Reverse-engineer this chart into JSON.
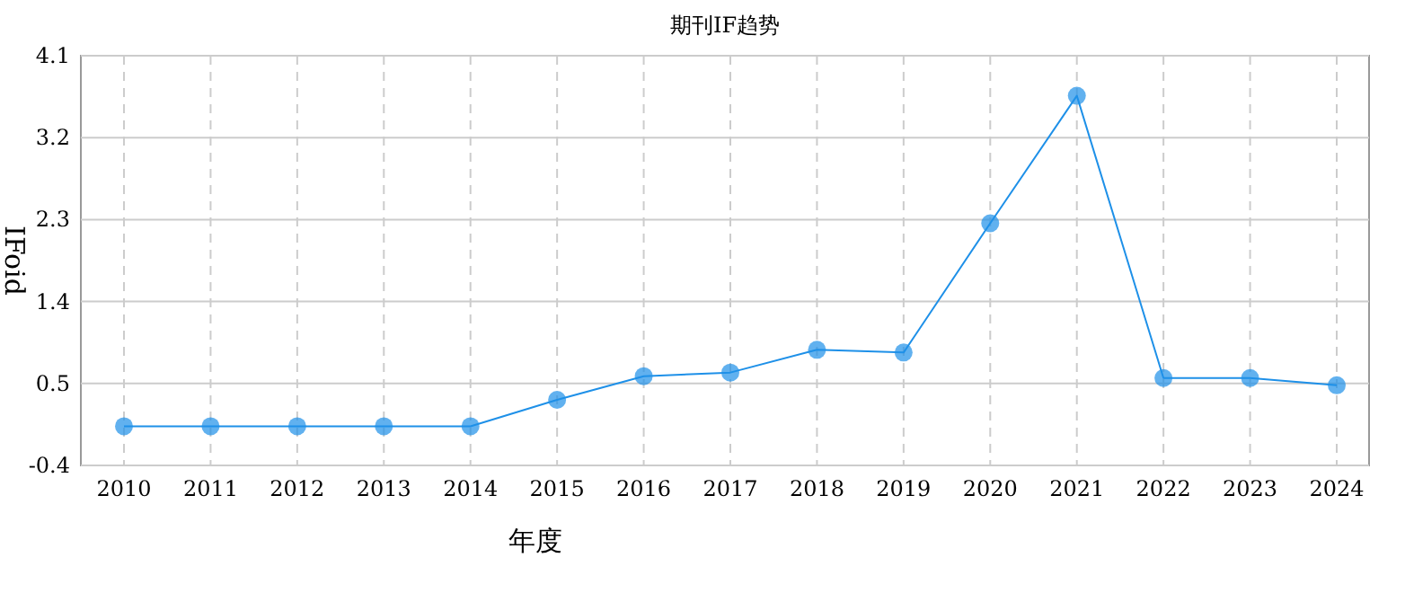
{
  "chart_data": {
    "type": "line",
    "title": "期刊IF趋势",
    "xlabel": "年度",
    "ylabel": "IFoid",
    "categories": [
      "2010",
      "2011",
      "2012",
      "2013",
      "2014",
      "2015",
      "2016",
      "2017",
      "2018",
      "2019",
      "2020",
      "2021",
      "2022",
      "2023",
      "2024"
    ],
    "series": [
      {
        "color": "#1e90e8",
        "values": [
          0.03,
          0.03,
          0.03,
          0.03,
          0.03,
          0.32,
          0.58,
          0.62,
          0.87,
          0.84,
          2.26,
          3.66,
          0.56,
          0.56,
          0.48
        ]
      }
    ],
    "ylim": [
      -0.4,
      4.1
    ],
    "yticks": [
      -0.4,
      0.5,
      1.4,
      2.3,
      3.2,
      4.1
    ],
    "grid": true,
    "marker": "circle",
    "line_style": "solid"
  }
}
